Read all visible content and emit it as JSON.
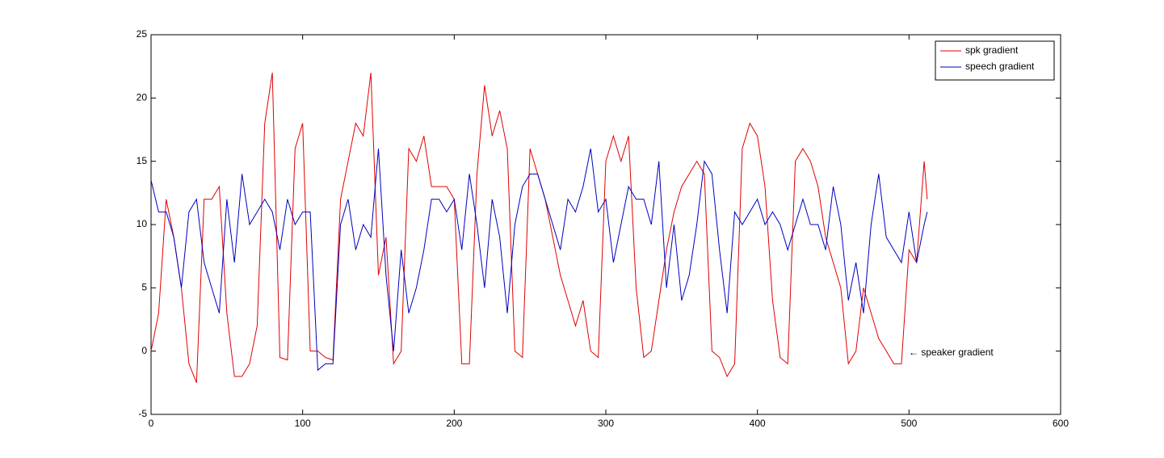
{
  "chart_data": {
    "type": "line",
    "x": [
      0,
      5,
      10,
      15,
      20,
      25,
      30,
      35,
      40,
      45,
      50,
      55,
      60,
      65,
      70,
      75,
      80,
      85,
      90,
      95,
      100,
      105,
      110,
      115,
      120,
      125,
      130,
      135,
      140,
      145,
      150,
      155,
      160,
      165,
      170,
      175,
      180,
      185,
      190,
      195,
      200,
      205,
      210,
      215,
      220,
      225,
      230,
      235,
      240,
      245,
      250,
      255,
      260,
      265,
      270,
      275,
      280,
      285,
      290,
      295,
      300,
      305,
      310,
      315,
      320,
      325,
      330,
      335,
      340,
      345,
      350,
      355,
      360,
      365,
      370,
      375,
      380,
      385,
      390,
      395,
      400,
      405,
      410,
      415,
      420,
      425,
      430,
      435,
      440,
      445,
      450,
      455,
      460,
      465,
      470,
      475,
      480,
      485,
      490,
      495,
      500,
      505,
      510,
      512
    ],
    "series": [
      {
        "name": "spk gradient",
        "color": "#e00000",
        "values": [
          0,
          3,
          12,
          9,
          5,
          -1,
          -2.5,
          12,
          12,
          13,
          3,
          -2,
          -2,
          -1,
          2,
          18,
          22,
          -0.5,
          -0.7,
          16,
          18,
          0,
          0,
          -0.5,
          -0.7,
          12,
          15,
          18,
          17,
          22,
          6,
          9,
          -1,
          0,
          16,
          15,
          17,
          13,
          13,
          13,
          12,
          -1,
          -1,
          14,
          21,
          17,
          19,
          16,
          0,
          -0.5,
          16,
          14,
          12,
          9,
          6,
          4,
          2,
          4,
          0,
          -0.5,
          15,
          17,
          15,
          17,
          5,
          -0.5,
          0,
          4,
          8,
          11,
          13,
          14,
          15,
          14,
          0,
          -0.5,
          -2,
          -1,
          16,
          18,
          17,
          13,
          4,
          -0.5,
          -1,
          15,
          16,
          15,
          13,
          9,
          7,
          5,
          -1,
          0,
          5,
          3,
          1,
          0,
          -1,
          -1,
          8,
          7,
          15,
          12
        ]
      },
      {
        "name": "speech gradient",
        "color": "#0000c0",
        "values": [
          13.5,
          11,
          11,
          9,
          5,
          11,
          12,
          7,
          5,
          3,
          12,
          7,
          14,
          10,
          11,
          12,
          11,
          8,
          12,
          10,
          11,
          11,
          -1.5,
          -1,
          -1,
          10,
          12,
          8,
          10,
          9,
          16,
          6,
          0,
          8,
          3,
          5,
          8,
          12,
          12,
          11,
          12,
          8,
          14,
          10,
          5,
          12,
          9,
          3,
          10,
          13,
          14,
          14,
          12,
          10,
          8,
          12,
          11,
          13,
          16,
          11,
          12,
          7,
          10,
          13,
          12,
          12,
          10,
          15,
          5,
          10,
          4,
          6,
          10,
          15,
          14,
          8,
          3,
          11,
          10,
          11,
          12,
          10,
          11,
          10,
          8,
          10,
          12,
          10,
          10,
          8,
          13,
          10,
          4,
          7,
          3,
          10,
          14,
          9,
          8,
          7,
          11,
          7,
          10,
          11
        ]
      }
    ],
    "xlim": [
      0,
      600
    ],
    "xticks": [
      0,
      100,
      200,
      300,
      400,
      500,
      600
    ],
    "ylim": [
      -5,
      25
    ],
    "yticks": [
      -5,
      0,
      5,
      10,
      15,
      20,
      25
    ],
    "annotation": "← speaker gradient",
    "legend": "upper right"
  }
}
